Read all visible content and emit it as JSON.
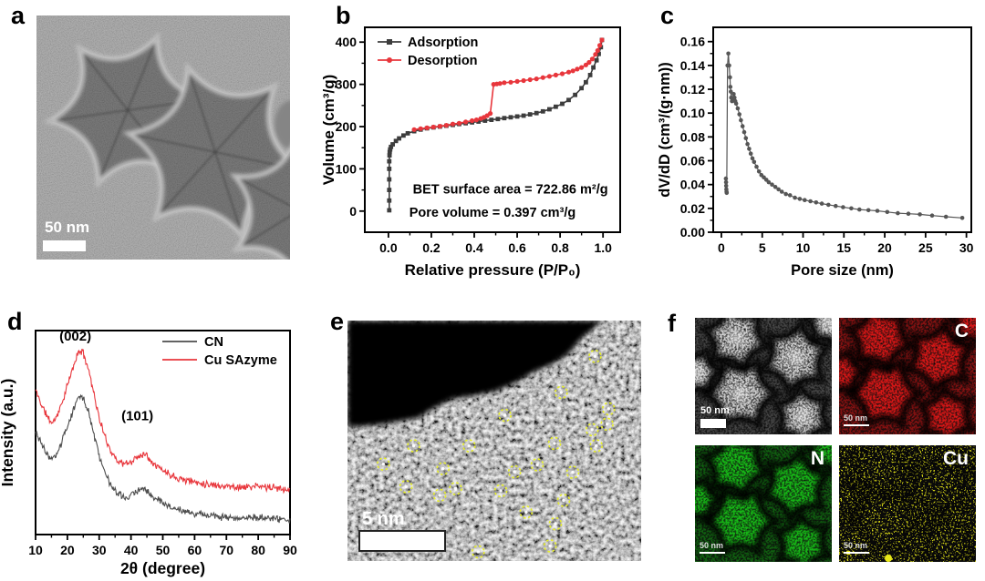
{
  "figure": {
    "panels": {
      "a": "a",
      "b": "b",
      "c": "c",
      "d": "d",
      "e": "e",
      "f": "f"
    }
  },
  "panel_a": {
    "scale_bar": "50 nm"
  },
  "panel_e": {
    "scale_bar": "5 nm",
    "marker_color": "#e8ef2a",
    "atom_markers": [
      [
        0.843,
        0.149
      ],
      [
        0.728,
        0.299
      ],
      [
        0.536,
        0.394
      ],
      [
        0.889,
        0.367
      ],
      [
        0.833,
        0.454
      ],
      [
        0.884,
        0.431
      ],
      [
        0.847,
        0.521
      ],
      [
        0.225,
        0.521
      ],
      [
        0.414,
        0.521
      ],
      [
        0.705,
        0.511
      ],
      [
        0.122,
        0.597
      ],
      [
        0.325,
        0.616
      ],
      [
        0.569,
        0.629
      ],
      [
        0.646,
        0.6
      ],
      [
        0.767,
        0.631
      ],
      [
        0.199,
        0.691
      ],
      [
        0.368,
        0.699
      ],
      [
        0.314,
        0.727
      ],
      [
        0.522,
        0.708
      ],
      [
        0.736,
        0.748
      ],
      [
        0.608,
        0.797
      ],
      [
        0.708,
        0.845
      ],
      [
        0.312,
        0.93
      ],
      [
        0.445,
        0.962
      ],
      [
        0.69,
        0.937
      ]
    ]
  },
  "panel_f": {
    "maps": [
      {
        "id": "haadf",
        "label": "",
        "scale_bar": "50 nm",
        "color": "#c9c9c9"
      },
      {
        "id": "C",
        "label": "C",
        "scale_bar": "50 nm",
        "color": "#d41414"
      },
      {
        "id": "N",
        "label": "N",
        "scale_bar": "50 nm",
        "color": "#16b416"
      },
      {
        "id": "Cu",
        "label": "Cu",
        "scale_bar": "50 nm",
        "color": "#e0e016"
      }
    ]
  },
  "chart_data": [
    {
      "id": "n2-isotherm",
      "type": "line",
      "xlabel": "Relative pressure (P/P₀)",
      "ylabel": "Volume (cm³/g)",
      "xlim": [
        -0.11,
        1.08
      ],
      "ylim": [
        -50,
        435
      ],
      "xticks": [
        0,
        0.2,
        0.4,
        0.6,
        0.8,
        1.0
      ],
      "xtick_labels": [
        "0.0",
        "0.2",
        "0.4",
        "0.6",
        "0.8",
        "1.0"
      ],
      "yticks": [
        0,
        100,
        200,
        300,
        400
      ],
      "ytick_labels": [
        "0",
        "100",
        "200",
        "300",
        "400"
      ],
      "legend_position": "top-left",
      "annotations": [
        "BET surface area = 722.86 m²/g",
        "Pore volume = 0.397 cm³/g"
      ],
      "series": [
        {
          "name": "Adsorption",
          "color": "#3d3d3d",
          "marker": "square",
          "points": [
            [
              0.004,
              2
            ],
            [
              0.004,
              25
            ],
            [
              0.004,
              50
            ],
            [
              0.004,
              75
            ],
            [
              0.004,
              100
            ],
            [
              0.004,
              118
            ],
            [
              0.005,
              132
            ],
            [
              0.006,
              140
            ],
            [
              0.008,
              146
            ],
            [
              0.012,
              152
            ],
            [
              0.02,
              158
            ],
            [
              0.035,
              166
            ],
            [
              0.05,
              172
            ],
            [
              0.07,
              179
            ],
            [
              0.09,
              184
            ],
            [
              0.12,
              189
            ],
            [
              0.15,
              193
            ],
            [
              0.18,
              196
            ],
            [
              0.21,
              198
            ],
            [
              0.24,
              200
            ],
            [
              0.27,
              202
            ],
            [
              0.3,
              204
            ],
            [
              0.33,
              206
            ],
            [
              0.36,
              208
            ],
            [
              0.39,
              210
            ],
            [
              0.42,
              212
            ],
            [
              0.45,
              214
            ],
            [
              0.48,
              216
            ],
            [
              0.51,
              218
            ],
            [
              0.54,
              220
            ],
            [
              0.57,
              222
            ],
            [
              0.6,
              224
            ],
            [
              0.63,
              226
            ],
            [
              0.66,
              229
            ],
            [
              0.69,
              232
            ],
            [
              0.72,
              236
            ],
            [
              0.75,
              241
            ],
            [
              0.78,
              247
            ],
            [
              0.81,
              254
            ],
            [
              0.84,
              263
            ],
            [
              0.87,
              275
            ],
            [
              0.9,
              291
            ],
            [
              0.92,
              305
            ],
            [
              0.94,
              322
            ],
            [
              0.955,
              340
            ],
            [
              0.97,
              357
            ],
            [
              0.98,
              372
            ],
            [
              0.99,
              388
            ],
            [
              0.995,
              405
            ]
          ]
        },
        {
          "name": "Desorption",
          "color": "#e8363c",
          "marker": "circle",
          "points": [
            [
              0.995,
              405
            ],
            [
              0.985,
              392
            ],
            [
              0.975,
              380
            ],
            [
              0.965,
              371
            ],
            [
              0.95,
              360
            ],
            [
              0.935,
              352
            ],
            [
              0.92,
              346
            ],
            [
              0.9,
              340
            ],
            [
              0.88,
              336
            ],
            [
              0.86,
              332
            ],
            [
              0.84,
              329
            ],
            [
              0.81,
              325
            ],
            [
              0.78,
              322
            ],
            [
              0.75,
              319
            ],
            [
              0.72,
              316
            ],
            [
              0.69,
              313
            ],
            [
              0.66,
              311
            ],
            [
              0.63,
              309
            ],
            [
              0.6,
              307
            ],
            [
              0.57,
              305
            ],
            [
              0.54,
              304
            ],
            [
              0.52,
              302
            ],
            [
              0.505,
              301
            ],
            [
              0.49,
              300
            ],
            [
              0.475,
              231
            ],
            [
              0.46,
              226
            ],
            [
              0.445,
              222
            ],
            [
              0.43,
              219
            ],
            [
              0.41,
              216
            ],
            [
              0.39,
              214
            ],
            [
              0.36,
              211
            ],
            [
              0.33,
              208
            ],
            [
              0.3,
              206
            ],
            [
              0.27,
              203
            ],
            [
              0.24,
              201
            ],
            [
              0.21,
              199
            ],
            [
              0.18,
              197
            ],
            [
              0.15,
              195
            ],
            [
              0.12,
              193
            ]
          ]
        }
      ]
    },
    {
      "id": "pore-size-distribution",
      "type": "scatter",
      "xlabel": "Pore size (nm)",
      "ylabel": "dV/dD (cm³/(g·nm))",
      "xlim": [
        -1.0,
        30.6
      ],
      "ylim": [
        0,
        0.172
      ],
      "xticks": [
        0,
        5,
        10,
        15,
        20,
        25,
        30
      ],
      "xtick_labels": [
        "0",
        "5",
        "10",
        "15",
        "20",
        "25",
        "30"
      ],
      "yticks": [
        0,
        0.02,
        0.04,
        0.06,
        0.08,
        0.1,
        0.12,
        0.14,
        0.16
      ],
      "ytick_labels": [
        "0.00",
        "0.02",
        "0.04",
        "0.06",
        "0.08",
        "0.10",
        "0.12",
        "0.14",
        "0.16"
      ],
      "series": [
        {
          "name": "dV/dD",
          "color": "#565656",
          "marker": "circle",
          "points": [
            [
              0.55,
              0.045
            ],
            [
              0.57,
              0.042
            ],
            [
              0.59,
              0.039
            ],
            [
              0.61,
              0.036
            ],
            [
              0.63,
              0.034
            ],
            [
              0.65,
              0.033
            ],
            [
              0.75,
              0.14
            ],
            [
              0.85,
              0.15
            ],
            [
              0.95,
              0.14
            ],
            [
              1.05,
              0.13
            ],
            [
              1.1,
              0.122
            ],
            [
              1.15,
              0.118
            ],
            [
              1.2,
              0.113
            ],
            [
              1.3,
              0.11
            ],
            [
              1.4,
              0.112
            ],
            [
              1.5,
              0.116
            ],
            [
              1.6,
              0.113
            ],
            [
              1.7,
              0.11
            ],
            [
              1.8,
              0.108
            ],
            [
              2,
              0.104
            ],
            [
              2.2,
              0.099
            ],
            [
              2.4,
              0.094
            ],
            [
              2.6,
              0.089
            ],
            [
              2.8,
              0.084
            ],
            [
              3,
              0.079
            ],
            [
              3.2,
              0.074
            ],
            [
              3.4,
              0.07
            ],
            [
              3.6,
              0.066
            ],
            [
              3.8,
              0.062
            ],
            [
              4,
              0.059
            ],
            [
              4.3,
              0.055
            ],
            [
              4.6,
              0.051
            ],
            [
              4.9,
              0.048
            ],
            [
              5.2,
              0.046
            ],
            [
              5.5,
              0.044
            ],
            [
              5.8,
              0.042
            ],
            [
              6.2,
              0.04
            ],
            [
              6.6,
              0.038
            ],
            [
              7,
              0.036
            ],
            [
              7.4,
              0.034
            ],
            [
              7.9,
              0.032
            ],
            [
              8.4,
              0.031
            ],
            [
              9,
              0.029
            ],
            [
              9.6,
              0.028
            ],
            [
              10.2,
              0.027
            ],
            [
              10.9,
              0.026
            ],
            [
              11.6,
              0.025
            ],
            [
              12.3,
              0.024
            ],
            [
              13.1,
              0.023
            ],
            [
              14,
              0.022
            ],
            [
              14.9,
              0.021
            ],
            [
              15.9,
              0.02
            ],
            [
              16.9,
              0.019
            ],
            [
              18,
              0.0185
            ],
            [
              19.1,
              0.018
            ],
            [
              20.3,
              0.017
            ],
            [
              21.6,
              0.016
            ],
            [
              22.9,
              0.0155
            ],
            [
              24.3,
              0.015
            ],
            [
              25.8,
              0.014
            ],
            [
              27.5,
              0.013
            ],
            [
              29.5,
              0.012
            ]
          ]
        }
      ]
    },
    {
      "id": "xrd",
      "type": "xrd",
      "xlabel": "2θ (degree)",
      "ylabel": "Intensity (a.u.)",
      "xlim": [
        10,
        90
      ],
      "ylim": [
        0,
        1
      ],
      "xticks": [
        10,
        20,
        30,
        40,
        50,
        60,
        70,
        80,
        90
      ],
      "xtick_labels": [
        "10",
        "20",
        "30",
        "40",
        "50",
        "60",
        "70",
        "80",
        "90"
      ],
      "yticks": [],
      "ytick_labels": [],
      "legend_position": "top-right",
      "peak_labels": [
        {
          "text": "(002)",
          "x": 22.5,
          "y": 0.95
        },
        {
          "text": "(101)",
          "x": 42,
          "y": 0.56
        }
      ],
      "profile": [
        [
          10,
          0.5
        ],
        [
          12,
          0.42
        ],
        [
          14,
          0.36
        ],
        [
          15,
          0.34
        ],
        [
          16,
          0.35
        ],
        [
          18,
          0.42
        ],
        [
          20,
          0.52
        ],
        [
          22,
          0.62
        ],
        [
          23.5,
          0.685
        ],
        [
          24.5,
          0.69
        ],
        [
          25.5,
          0.66
        ],
        [
          27,
          0.58
        ],
        [
          28.5,
          0.47
        ],
        [
          30,
          0.36
        ],
        [
          32,
          0.26
        ],
        [
          34,
          0.19
        ],
        [
          36,
          0.15
        ],
        [
          38,
          0.135
        ],
        [
          40,
          0.145
        ],
        [
          42,
          0.17
        ],
        [
          43.5,
          0.185
        ],
        [
          44.5,
          0.185
        ],
        [
          46,
          0.16
        ],
        [
          48,
          0.13
        ],
        [
          50,
          0.105
        ],
        [
          53,
          0.08
        ],
        [
          56,
          0.062
        ],
        [
          60,
          0.048
        ],
        [
          64,
          0.038
        ],
        [
          68,
          0.03
        ],
        [
          72,
          0.025
        ],
        [
          76,
          0.022
        ],
        [
          79,
          0.026
        ],
        [
          82,
          0.024
        ],
        [
          85,
          0.018
        ],
        [
          88,
          0.015
        ],
        [
          90,
          0.014
        ]
      ],
      "series": [
        {
          "name": "CN",
          "color": "#4d4d4d",
          "offset": 0.06,
          "scale": 0.9,
          "noise": 0.022
        },
        {
          "name": "Cu SAzyme",
          "color": "#e8363c",
          "offset": 0.21,
          "scale": 1.0,
          "noise": 0.022
        }
      ]
    }
  ]
}
